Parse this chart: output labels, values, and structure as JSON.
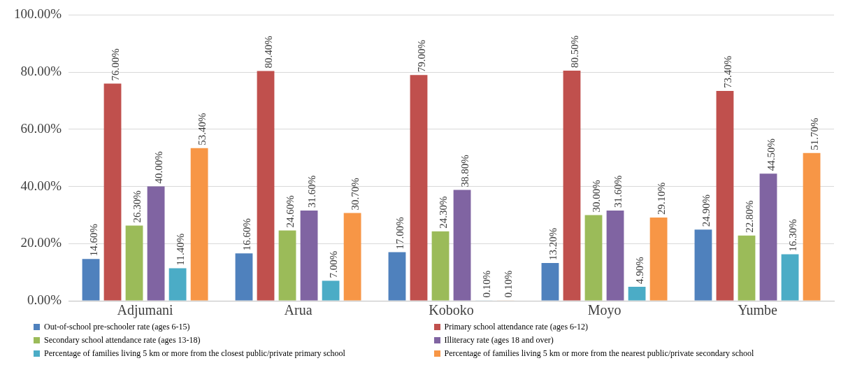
{
  "chart_data": {
    "type": "bar",
    "categories": [
      "Adjumani",
      "Arua",
      "Koboko",
      "Moyo",
      "Yumbe"
    ],
    "ylim": [
      0,
      100
    ],
    "yticks": [
      {
        "value": 0,
        "label": "0.00%"
      },
      {
        "value": 20,
        "label": "20.00%"
      },
      {
        "value": 40,
        "label": "40.00%"
      },
      {
        "value": 60,
        "label": "60.00%"
      },
      {
        "value": 80,
        "label": "80.00%"
      },
      {
        "value": 100,
        "label": "100.00%"
      }
    ],
    "grid": "y",
    "legend": "bottom",
    "series": [
      {
        "name": "Out-of-school pre-schooler rate (ages 6-15)",
        "color": "#4f81bd",
        "values": [
          14.6,
          16.6,
          17.0,
          13.2,
          24.9
        ],
        "value_labels": [
          "14.60%",
          "16.60%",
          "17.00%",
          "13.20%",
          "24.90%"
        ]
      },
      {
        "name": "Primary school attendance rate (ages 6-12)",
        "color": "#c0504d",
        "values": [
          76.0,
          80.4,
          79.0,
          80.5,
          73.4
        ],
        "value_labels": [
          "76.00%",
          "80.40%",
          "79.00%",
          "80.50%",
          "73.40%"
        ]
      },
      {
        "name": "Secondary school attendance rate (ages 13-18)",
        "color": "#9bbb59",
        "values": [
          26.3,
          24.6,
          24.3,
          30.0,
          22.8
        ],
        "value_labels": [
          "26.30%",
          "24.60%",
          "24.30%",
          "30.00%",
          "22.80%"
        ]
      },
      {
        "name": "Illiteracy rate (ages 18 and over)",
        "color": "#8064a2",
        "values": [
          40.0,
          31.6,
          38.8,
          31.6,
          44.5
        ],
        "value_labels": [
          "40.00%",
          "31.60%",
          "38.80%",
          "31.60%",
          "44.50%"
        ]
      },
      {
        "name": "Percentage of families living 5 km or more from the closest public/private primary school",
        "color": "#4bacc6",
        "values": [
          11.4,
          7.0,
          0.1,
          4.9,
          16.3
        ],
        "value_labels": [
          "11.40%",
          "7.00%",
          "0.10%",
          "4.90%",
          "16.30%"
        ]
      },
      {
        "name": "Percentage of families living 5 km or more from the nearest public/private secondary school",
        "color": "#f79646",
        "values": [
          53.4,
          30.7,
          0.1,
          29.1,
          51.7
        ],
        "value_labels": [
          "53.40%",
          "30.70%",
          "0.10%",
          "29.10%",
          "51.70%"
        ]
      }
    ]
  }
}
